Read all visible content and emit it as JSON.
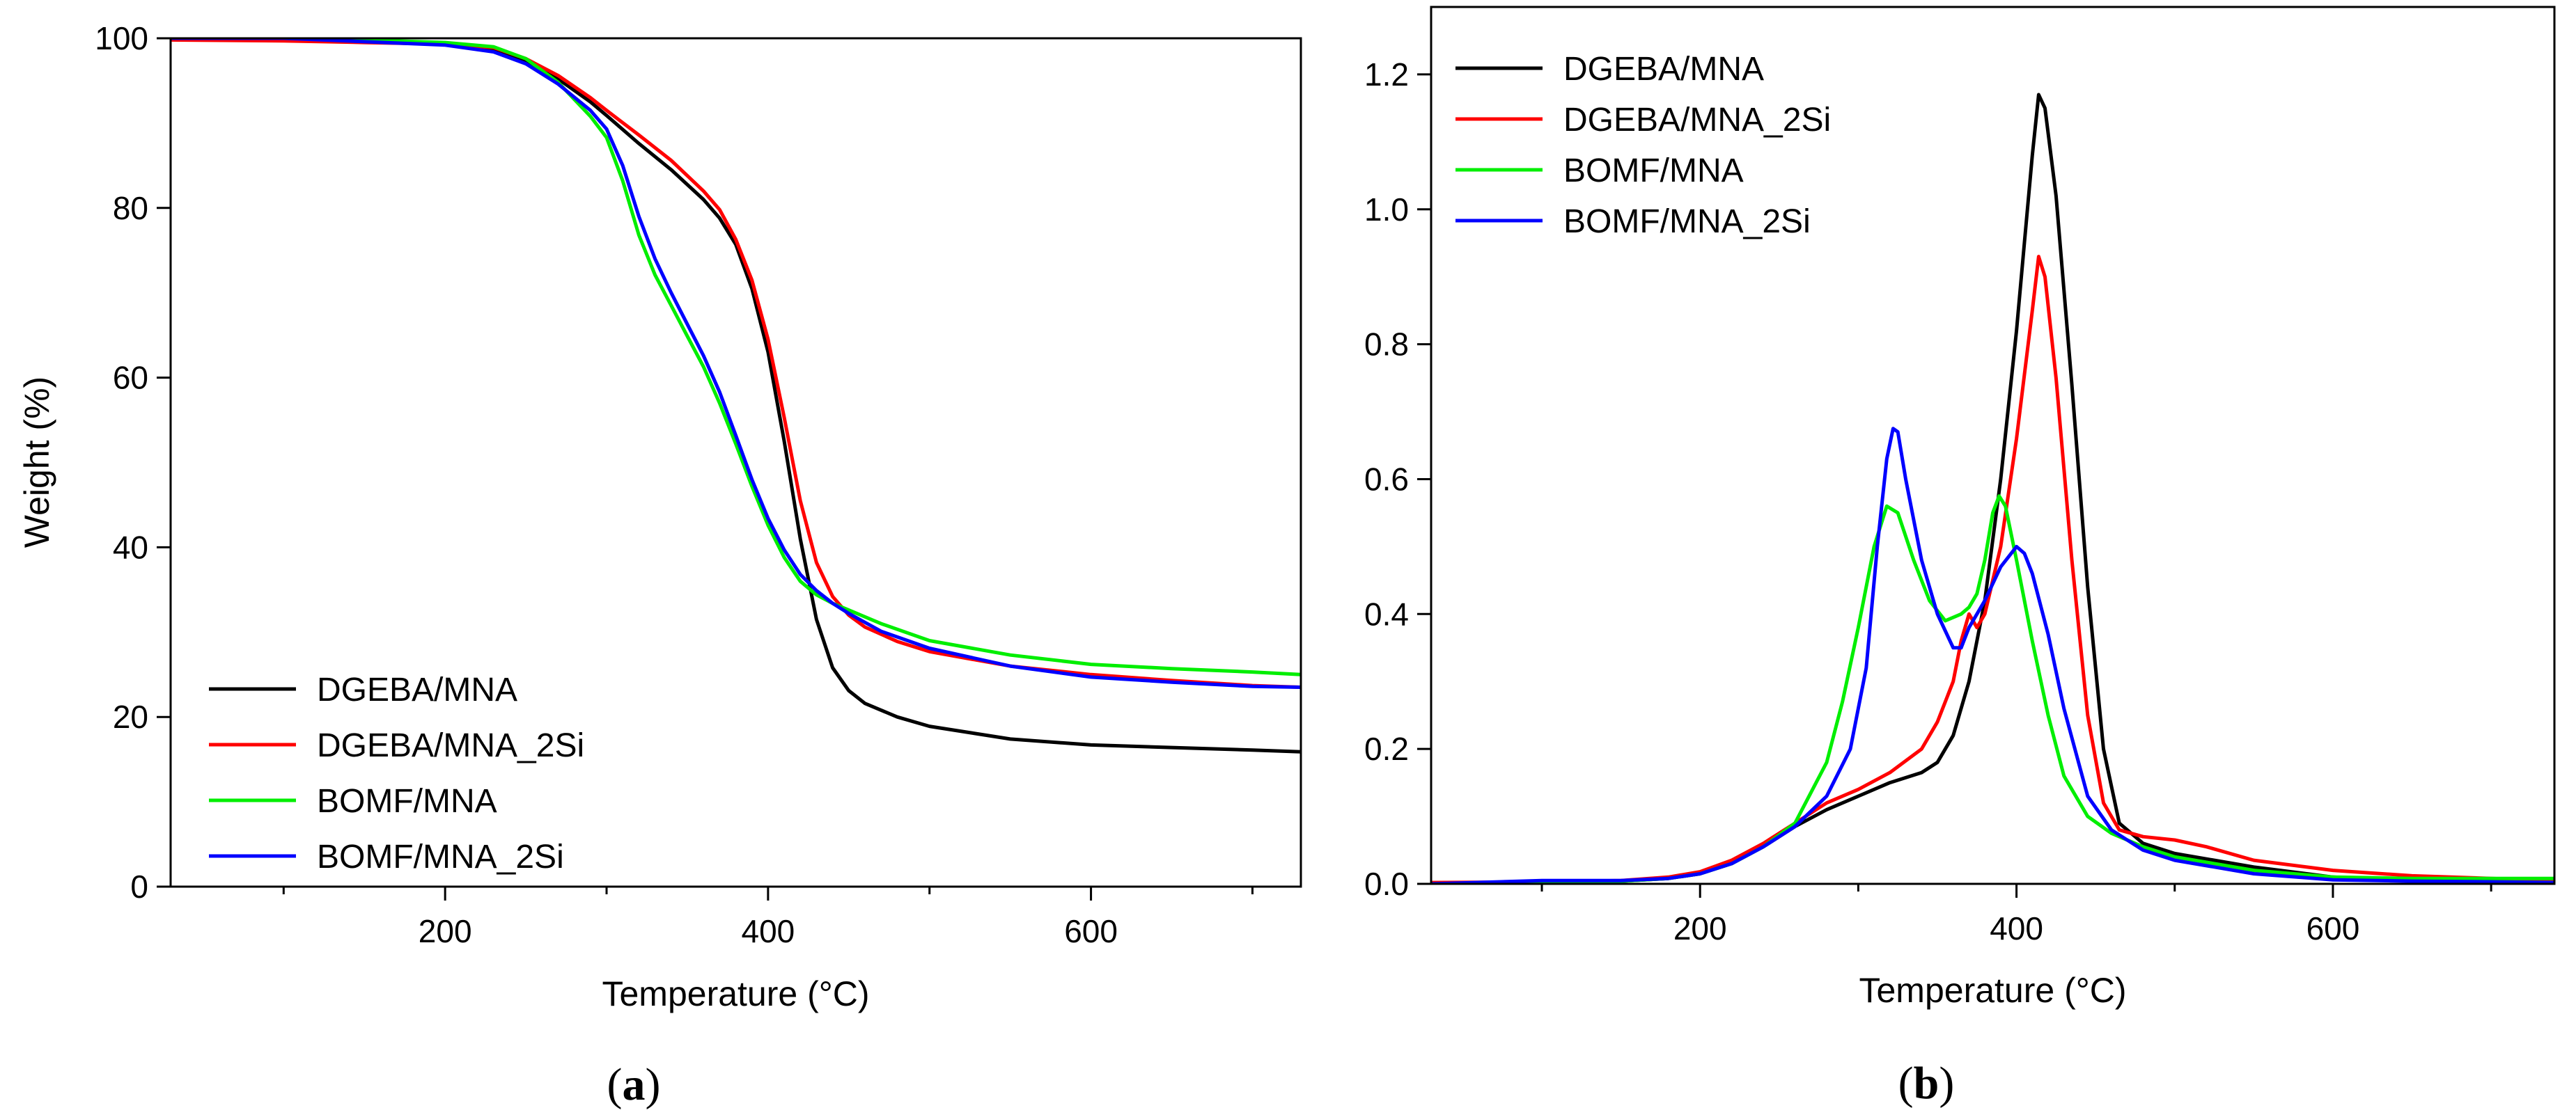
{
  "chart_data": [
    {
      "id": "a",
      "type": "line",
      "title": "",
      "caption": "(a)",
      "caption_parts": [
        "(",
        "a",
        ")"
      ],
      "xlabel": "Temperature (°C)",
      "ylabel": "Weight (%)",
      "xlim": [
        30,
        730
      ],
      "ylim": [
        0,
        100
      ],
      "xticks": [
        200,
        400,
        600
      ],
      "xminor": [
        100,
        300,
        500,
        700
      ],
      "yticks": [
        0,
        20,
        40,
        60,
        80,
        100
      ],
      "grid": false,
      "legend_position": "bottom-left",
      "series": [
        {
          "name": "DGEBA/MNA",
          "color": "#000000",
          "x": [
            30,
            100,
            150,
            200,
            230,
            250,
            270,
            290,
            300,
            320,
            340,
            360,
            370,
            380,
            390,
            400,
            410,
            420,
            430,
            440,
            450,
            460,
            480,
            500,
            550,
            600,
            650,
            700,
            730
          ],
          "y": [
            100,
            100,
            99.7,
            99.4,
            98.6,
            97.3,
            95.2,
            92.5,
            90.9,
            87.6,
            84.5,
            81,
            78.8,
            75.7,
            70.5,
            63,
            52.5,
            41,
            31.5,
            25.8,
            23.1,
            21.6,
            20,
            18.9,
            17.4,
            16.7,
            16.4,
            16.1,
            15.9
          ]
        },
        {
          "name": "DGEBA/MNA_2Si",
          "color": "#ff0000",
          "x": [
            30,
            100,
            150,
            200,
            230,
            250,
            270,
            290,
            300,
            320,
            340,
            360,
            370,
            380,
            390,
            400,
            410,
            420,
            430,
            440,
            450,
            460,
            480,
            500,
            550,
            600,
            650,
            700,
            730
          ],
          "y": [
            99.8,
            99.7,
            99.5,
            99.3,
            98.9,
            97.6,
            95.6,
            93,
            91.5,
            88.6,
            85.6,
            82,
            79.8,
            76.3,
            71.5,
            64.5,
            55.3,
            45.5,
            38.2,
            34.2,
            32,
            30.6,
            28.9,
            27.7,
            26,
            25,
            24.3,
            23.7,
            23.5
          ]
        },
        {
          "name": "BOMF/MNA",
          "color": "#00ee00",
          "x": [
            30,
            100,
            150,
            200,
            230,
            250,
            270,
            290,
            300,
            310,
            320,
            330,
            340,
            350,
            360,
            370,
            380,
            390,
            400,
            410,
            420,
            430,
            440,
            450,
            470,
            500,
            550,
            600,
            650,
            700,
            730
          ],
          "y": [
            100,
            100,
            99.8,
            99.5,
            99,
            97.6,
            94.8,
            90.8,
            88.3,
            83.2,
            76.8,
            72.1,
            68.5,
            64.9,
            61.3,
            57,
            52.2,
            47.2,
            42.6,
            38.8,
            36,
            34.4,
            33.4,
            32.6,
            31,
            29,
            27.3,
            26.2,
            25.7,
            25.3,
            25
          ]
        },
        {
          "name": "BOMF/MNA_2Si",
          "color": "#0000ff",
          "x": [
            30,
            100,
            150,
            200,
            230,
            250,
            270,
            290,
            300,
            310,
            320,
            330,
            340,
            350,
            360,
            370,
            380,
            390,
            400,
            410,
            420,
            430,
            440,
            450,
            470,
            500,
            550,
            600,
            650,
            700,
            730
          ],
          "y": [
            100,
            100,
            99.6,
            99.2,
            98.4,
            97,
            94.6,
            91.5,
            89.3,
            85,
            79,
            74,
            70,
            66.3,
            62.6,
            58.3,
            53.2,
            48,
            43.4,
            39.7,
            36.8,
            34.9,
            33.4,
            32.2,
            30.1,
            28.1,
            26,
            24.7,
            24.1,
            23.6,
            23.5
          ]
        }
      ]
    },
    {
      "id": "b",
      "type": "line",
      "title": "",
      "caption": "(b)",
      "caption_parts": [
        "(",
        "b",
        ")"
      ],
      "xlabel": "Temperature (°C)",
      "ylabel": "",
      "xlim": [
        30,
        740
      ],
      "ylim": [
        0,
        1.3
      ],
      "xticks": [
        200,
        400,
        600
      ],
      "xminor": [
        100,
        300,
        500,
        700
      ],
      "yticks": [
        0.0,
        0.2,
        0.4,
        0.6,
        0.8,
        1.0,
        1.2
      ],
      "ytick_labels": [
        "0.0",
        "0.2",
        "0.4",
        "0.6",
        "0.8",
        "1.0",
        "1.2"
      ],
      "grid": false,
      "legend_position": "top-left",
      "series": [
        {
          "name": "DGEBA/MNA",
          "color": "#000000",
          "x": [
            30,
            100,
            150,
            180,
            200,
            220,
            240,
            260,
            280,
            300,
            320,
            340,
            350,
            360,
            370,
            380,
            390,
            400,
            405,
            410,
            414,
            418,
            425,
            435,
            445,
            455,
            465,
            480,
            500,
            550,
            600,
            650,
            700,
            740
          ],
          "y": [
            0,
            0.002,
            0.004,
            0.008,
            0.015,
            0.03,
            0.055,
            0.085,
            0.11,
            0.13,
            0.15,
            0.165,
            0.18,
            0.22,
            0.3,
            0.42,
            0.6,
            0.82,
            0.95,
            1.08,
            1.17,
            1.15,
            1.02,
            0.74,
            0.44,
            0.2,
            0.09,
            0.06,
            0.045,
            0.025,
            0.01,
            0.005,
            0.003,
            0.002
          ]
        },
        {
          "name": "DGEBA/MNA_2Si",
          "color": "#ff0000",
          "x": [
            30,
            100,
            150,
            180,
            200,
            220,
            240,
            260,
            280,
            300,
            320,
            340,
            350,
            360,
            365,
            370,
            375,
            380,
            390,
            400,
            410,
            414,
            418,
            425,
            435,
            445,
            455,
            465,
            480,
            500,
            520,
            550,
            600,
            650,
            700,
            740
          ],
          "y": [
            0.002,
            0.003,
            0.005,
            0.01,
            0.018,
            0.035,
            0.06,
            0.09,
            0.12,
            0.14,
            0.165,
            0.2,
            0.24,
            0.3,
            0.36,
            0.4,
            0.38,
            0.4,
            0.5,
            0.66,
            0.85,
            0.93,
            0.9,
            0.75,
            0.48,
            0.25,
            0.12,
            0.08,
            0.07,
            0.065,
            0.055,
            0.035,
            0.02,
            0.012,
            0.008,
            0.005
          ]
        },
        {
          "name": "BOMF/MNA",
          "color": "#00ee00",
          "x": [
            30,
            100,
            150,
            180,
            200,
            220,
            240,
            260,
            280,
            290,
            300,
            310,
            318,
            325,
            335,
            345,
            355,
            365,
            370,
            375,
            380,
            385,
            389,
            393,
            400,
            410,
            420,
            430,
            445,
            460,
            480,
            500,
            550,
            600,
            650,
            700,
            740
          ],
          "y": [
            0,
            0.002,
            0.004,
            0.008,
            0.015,
            0.03,
            0.055,
            0.09,
            0.18,
            0.27,
            0.38,
            0.5,
            0.56,
            0.55,
            0.48,
            0.42,
            0.39,
            0.4,
            0.41,
            0.43,
            0.48,
            0.55,
            0.575,
            0.56,
            0.48,
            0.36,
            0.25,
            0.16,
            0.1,
            0.075,
            0.055,
            0.04,
            0.02,
            0.01,
            0.008,
            0.008,
            0.008
          ]
        },
        {
          "name": "BOMF/MNA_2Si",
          "color": "#0000ff",
          "x": [
            30,
            100,
            150,
            180,
            200,
            220,
            240,
            260,
            280,
            295,
            305,
            312,
            318,
            322,
            325,
            330,
            340,
            350,
            360,
            365,
            370,
            375,
            380,
            390,
            400,
            405,
            410,
            420,
            430,
            445,
            460,
            480,
            500,
            550,
            600,
            650,
            700,
            740
          ],
          "y": [
            0,
            0.005,
            0.005,
            0.008,
            0.015,
            0.03,
            0.055,
            0.085,
            0.13,
            0.2,
            0.32,
            0.5,
            0.63,
            0.675,
            0.67,
            0.6,
            0.48,
            0.4,
            0.35,
            0.35,
            0.38,
            0.4,
            0.42,
            0.47,
            0.5,
            0.49,
            0.46,
            0.37,
            0.26,
            0.13,
            0.08,
            0.05,
            0.035,
            0.015,
            0.006,
            0.004,
            0.003,
            0.002
          ]
        }
      ]
    }
  ]
}
